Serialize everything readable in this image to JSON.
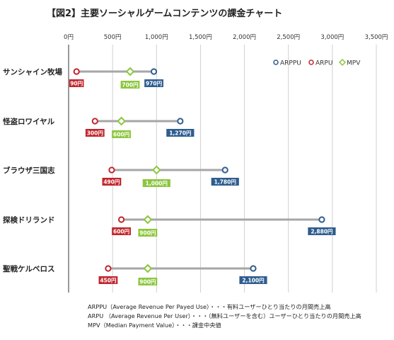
{
  "chart_data": {
    "type": "dot-range",
    "title": "【図2】主要ソーシャルゲームコンテンツの課金チャート",
    "xlim": [
      0,
      3500
    ],
    "x_ticks": [
      "0円",
      "500円",
      "1,000円",
      "1,500円",
      "2,000円",
      "2,500円",
      "3,000円",
      "3,500円"
    ],
    "x_tick_values": [
      0,
      500,
      1000,
      1500,
      2000,
      2500,
      3000,
      3500
    ],
    "categories": [
      "サンシャイン牧場",
      "怪盗ロワイヤル",
      "ブラウザ三国志",
      "探検ドリランド",
      "聖戦ケルベロス"
    ],
    "series": [
      {
        "name": "ARPPU",
        "values": [
          970,
          1270,
          1780,
          2880,
          2100
        ],
        "labels": [
          "970円",
          "1,270円",
          "1,780円",
          "2,880円",
          "2,100円"
        ],
        "color": "#2e5d8f"
      },
      {
        "name": "ARPU",
        "values": [
          90,
          300,
          490,
          600,
          450
        ],
        "labels": [
          "90円",
          "300円",
          "490円",
          "600円",
          "450円"
        ],
        "color": "#c0262d"
      },
      {
        "name": "MPV",
        "values": [
          700,
          600,
          1000,
          900,
          900
        ],
        "labels": [
          "700円",
          "600円",
          "1,000円",
          "900円",
          "900円"
        ],
        "color": "#8cc63e"
      }
    ],
    "legend": {
      "position": "top-right",
      "items": [
        "ARPPU",
        "ARPU",
        "MPV"
      ]
    },
    "grid": true
  },
  "notes": [
    "ARPPU（Average Revenue Per Payed Use）・・・有料ユーザーひとり当たりの月間売上高",
    "ARPU （Average Revenue Per User）・・・（無料ユーザーを含む）ユーザーひとり当たりの月間売上高",
    "MPV（Median Payment Value）・・・課金中央値"
  ]
}
